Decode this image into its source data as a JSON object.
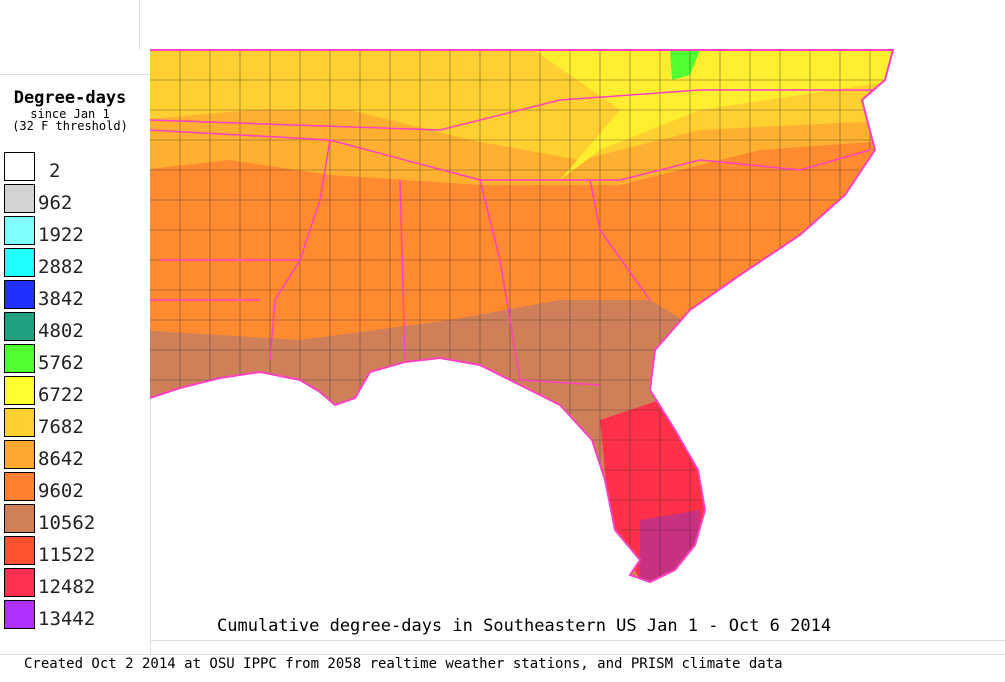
{
  "legend": {
    "title": "Degree-days",
    "subtitle1": "since Jan 1",
    "subtitle2": "(32 F threshold)",
    "items": [
      {
        "value": "2",
        "color": "#ffffff"
      },
      {
        "value": "962",
        "color": "#d3d3d3"
      },
      {
        "value": "1922",
        "color": "#80ffff"
      },
      {
        "value": "2882",
        "color": "#20ffff"
      },
      {
        "value": "3842",
        "color": "#2030ff"
      },
      {
        "value": "4802",
        "color": "#20a080"
      },
      {
        "value": "5762",
        "color": "#50ff30"
      },
      {
        "value": "6722",
        "color": "#ffff30"
      },
      {
        "value": "7682",
        "color": "#ffd030"
      },
      {
        "value": "8642",
        "color": "#ffa830"
      },
      {
        "value": "9602",
        "color": "#ff8030"
      },
      {
        "value": "10562",
        "color": "#d08058"
      },
      {
        "value": "11522",
        "color": "#ff5030"
      },
      {
        "value": "12482",
        "color": "#ff3050"
      },
      {
        "value": "13442",
        "color": "#b030ff"
      }
    ]
  },
  "map_title": "Cumulative degree-days in Southeastern US Jan 1 - Oct 6 2014",
  "credit": "Created Oct 2 2014 at OSU IPPC from 2058 realtime weather stations, and PRISM climate data",
  "colors": {
    "state_border": "#ff40c0",
    "county_border": "#333333"
  }
}
